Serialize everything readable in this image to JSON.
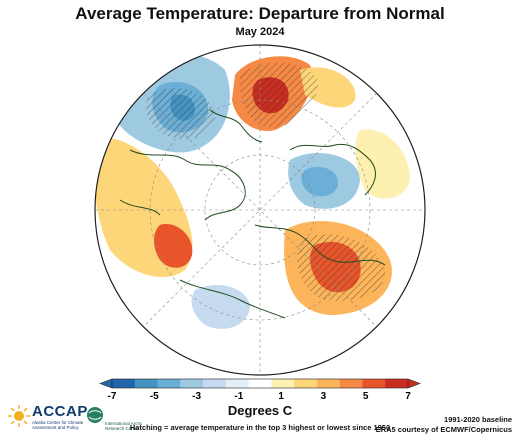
{
  "header": {
    "title": "Average Temperature: Departure from Normal",
    "subtitle": "May 2024"
  },
  "colorbar": {
    "title": "Degrees C",
    "tick_labels": [
      "-7",
      "-5",
      "-3",
      "-1",
      "1",
      "3",
      "5",
      "7"
    ],
    "colors": [
      "#2166ac",
      "#4393c3",
      "#6baed6",
      "#9ecae1",
      "#c6dbef",
      "#e4eef7",
      "#ffffff",
      "#fdf0b0",
      "#fdd67a",
      "#fcb55a",
      "#f68a44",
      "#e8552b",
      "#c92d1f"
    ]
  },
  "footnote": "Hatching = average temperature in the top 3 highest or lowest since 1950",
  "baseline": {
    "line1": "1991-2020 baseline",
    "line2": "ERA5 courtesy of ECMWF/Copernicus"
  },
  "logos": {
    "accap_name": "ACCAP",
    "accap_sub": "Alaska Center for Climate Assessment and Policy",
    "iarc_sub": "International Arctic Research Center"
  }
}
